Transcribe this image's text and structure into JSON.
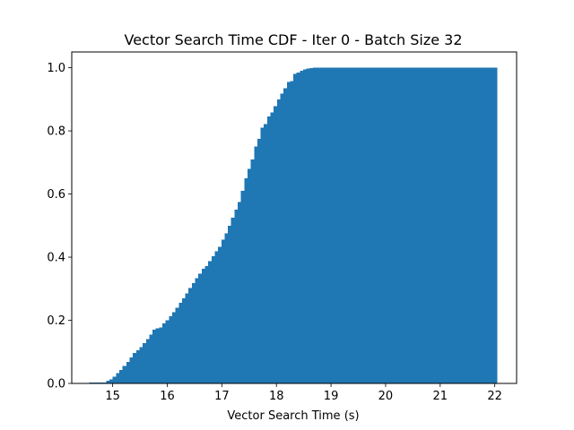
{
  "chart_data": {
    "type": "bar",
    "title": "Vector Search Time CDF - Iter 0 - Batch Size 32",
    "xlabel": "Vector Search Time (s)",
    "ylabel": "",
    "xlim": [
      14.25,
      22.4
    ],
    "ylim": [
      0,
      1.05
    ],
    "xticks": [
      15,
      16,
      17,
      18,
      19,
      20,
      21,
      22
    ],
    "yticks": [
      0.0,
      0.2,
      0.4,
      0.6,
      0.8,
      1.0
    ],
    "ytick_labels": [
      "0.0",
      "0.2",
      "0.4",
      "0.6",
      "0.8",
      "1.0"
    ],
    "bar_color": "#1f77b4",
    "grid": false,
    "series": [
      {
        "x": [
          14.57,
          14.88,
          14.94,
          15.0,
          15.06,
          15.12,
          15.18,
          15.25,
          15.31,
          15.37,
          15.43,
          15.49,
          15.55,
          15.61,
          15.67,
          15.73,
          15.79,
          15.85,
          15.91,
          15.97,
          16.03,
          16.09,
          16.15,
          16.21,
          16.27,
          16.33,
          16.39,
          16.45,
          16.51,
          16.57,
          16.63,
          16.69,
          16.75,
          16.81,
          16.87,
          16.93,
          16.99,
          17.05,
          17.11,
          17.17,
          17.23,
          17.29,
          17.35,
          17.41,
          17.47,
          17.53,
          17.59,
          17.65,
          17.71,
          17.77,
          17.83,
          17.89,
          17.95,
          18.01,
          18.07,
          18.13,
          18.19,
          18.25,
          18.31,
          18.37,
          18.43,
          18.49,
          18.55,
          18.61,
          18.67,
          18.73,
          18.79,
          18.85,
          18.91,
          18.97,
          19.03,
          22.0,
          22.04
        ],
        "y": [
          0.003,
          0.008,
          0.013,
          0.022,
          0.032,
          0.043,
          0.055,
          0.068,
          0.083,
          0.097,
          0.105,
          0.115,
          0.128,
          0.14,
          0.155,
          0.17,
          0.175,
          0.178,
          0.19,
          0.2,
          0.213,
          0.225,
          0.24,
          0.255,
          0.27,
          0.285,
          0.302,
          0.318,
          0.333,
          0.348,
          0.363,
          0.372,
          0.388,
          0.403,
          0.418,
          0.433,
          0.455,
          0.475,
          0.5,
          0.525,
          0.55,
          0.575,
          0.61,
          0.65,
          0.68,
          0.71,
          0.75,
          0.775,
          0.81,
          0.822,
          0.845,
          0.858,
          0.878,
          0.9,
          0.918,
          0.935,
          0.955,
          0.958,
          0.98,
          0.985,
          0.99,
          0.994,
          0.997,
          0.999,
          1.0,
          1.0,
          1.0,
          1.0,
          1.0,
          1.0,
          1.0,
          1.0,
          1.0
        ]
      }
    ]
  }
}
